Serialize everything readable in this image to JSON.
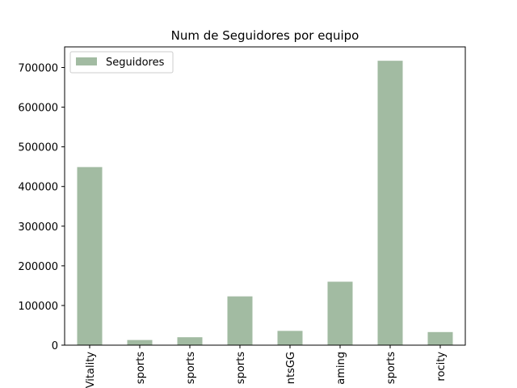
{
  "chart_data": {
    "type": "bar",
    "title": "Num de Seguidores por equipo",
    "xlabel": "",
    "ylabel": "",
    "categories": [
      "Vitality",
      "sports",
      "sports",
      "sports",
      "ntsGG",
      "aming",
      "sports",
      "rocity"
    ],
    "series": [
      {
        "name": "Seguidores",
        "values": [
          449000,
          13000,
          20000,
          123000,
          36000,
          160000,
          717000,
          33000
        ]
      }
    ],
    "ylim": [
      0,
      752000
    ],
    "yticks": [
      0,
      100000,
      200000,
      300000,
      400000,
      500000,
      600000,
      700000
    ],
    "legend_position": "top-left",
    "grid": false,
    "colors": {
      "bar": "#a2bba2",
      "axis": "#000000"
    }
  }
}
